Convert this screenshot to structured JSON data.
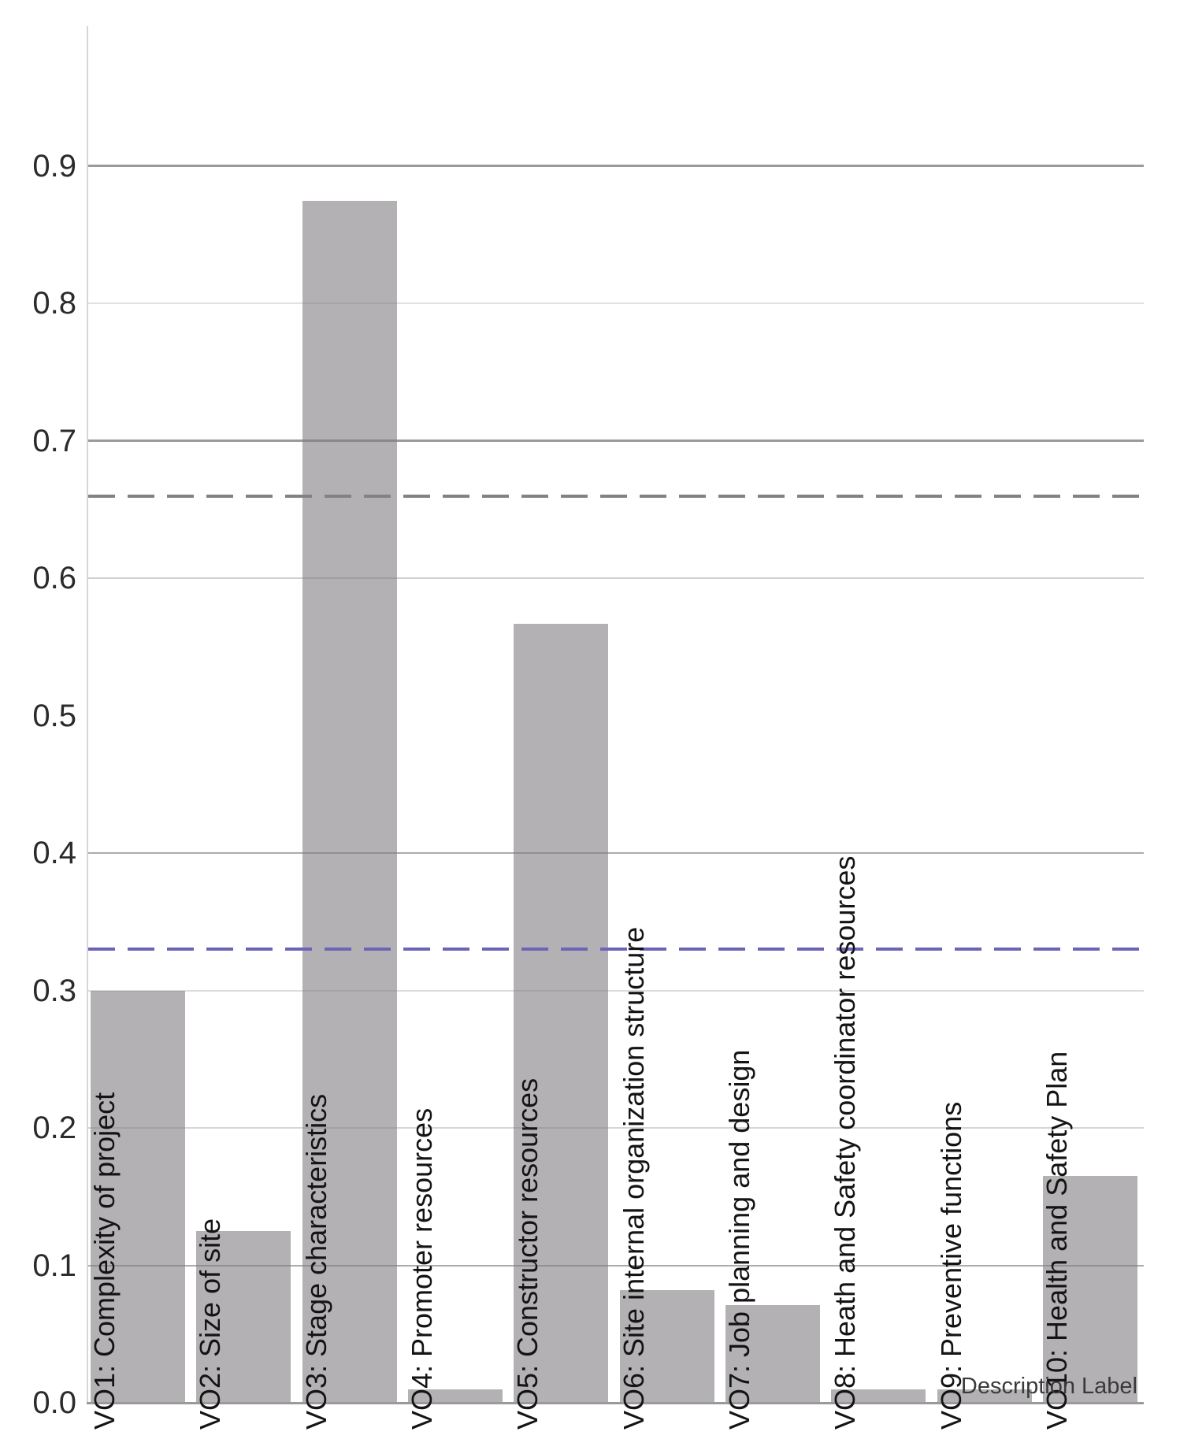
{
  "chart_data": {
    "type": "bar",
    "title": "",
    "xlabel": "Description Label",
    "ylabel": "",
    "ylim": [
      0.0,
      1.0
    ],
    "grid": true,
    "legend": false,
    "categories": [
      "VO1: Complexity of project",
      "VO2: Size of site",
      "VO3: Stage characteristics",
      "VO4: Promoter resources",
      "VO5: Constructor resources",
      "VO6: Site internal organization structure",
      "VO7: Job planning and design",
      "VO8: Heath and Safety coordinator resources",
      "VO9: Preventive functions",
      "VO10: Health and Safety Plan"
    ],
    "values": [
      0.3,
      0.125,
      0.875,
      0.01,
      0.567,
      0.082,
      0.071,
      0.01,
      0.01,
      0.165
    ],
    "ytick_values": [
      0.0,
      0.1,
      0.2,
      0.3,
      0.4,
      0.5,
      0.6,
      0.7,
      0.8,
      0.9
    ],
    "ytick_labels": [
      "0.0",
      "0.1",
      "0.2",
      "0.3",
      "0.4",
      "0.5",
      "0.6",
      "0.7",
      "0.8",
      "0.9"
    ],
    "gridlines": [
      {
        "value": 0.1,
        "color": "#ababab"
      },
      {
        "value": 0.2,
        "color": "#d6d6d6"
      },
      {
        "value": 0.3,
        "color": "#dcdcdc"
      },
      {
        "value": 0.4,
        "color": "#ababab"
      },
      {
        "value": 0.6,
        "color": "#d0d0d0"
      },
      {
        "value": 0.7,
        "color": "#9a9a9a"
      },
      {
        "value": 0.8,
        "color": "#e2e2e2"
      },
      {
        "value": 0.9,
        "color": "#9a9a9a"
      }
    ],
    "reference_lines": [
      {
        "name": "upper-threshold",
        "value": 0.66,
        "color": "#828282",
        "style": "dashed"
      },
      {
        "name": "lower-threshold",
        "value": 0.33,
        "color": "#6b65b8",
        "style": "dashed"
      }
    ],
    "bar_color": "rgba(130,125,131,0.6)",
    "axis_color": "#9a9a9a",
    "text_color": "#141414"
  }
}
